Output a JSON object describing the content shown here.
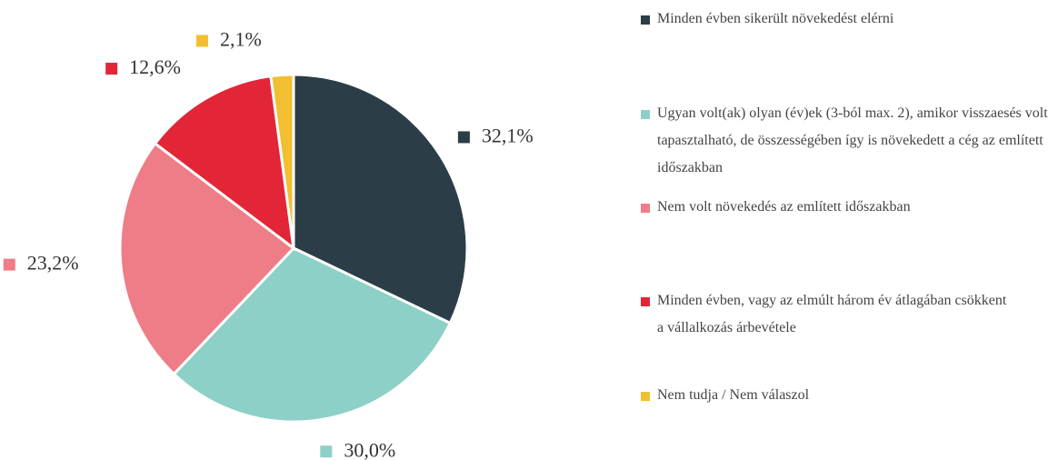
{
  "chart_data": {
    "type": "pie",
    "categories": [
      "Minden évben sikerült növekedést elérni",
      "Ugyan volt(ak) olyan (év)ek (3-ból max. 2), amikor visszaesés volt tapasztalható, de összességében így is növekedett a cég az említett időszakban",
      "Nem volt növekedés az említett időszakban",
      "Minden évben, vagy az elmúlt három év átlagában csökkent a vállalkozás árbevétele",
      "Nem tudja / Nem válaszol"
    ],
    "values": [
      32.1,
      30.0,
      23.2,
      12.6,
      2.1
    ],
    "value_labels": [
      "32,1%",
      "30,0%",
      "23,2%",
      "12,6%",
      "2,1%"
    ],
    "colors": [
      "#2b3d47",
      "#8dd0c7",
      "#ee7d87",
      "#e22637",
      "#f2bf32"
    ]
  }
}
